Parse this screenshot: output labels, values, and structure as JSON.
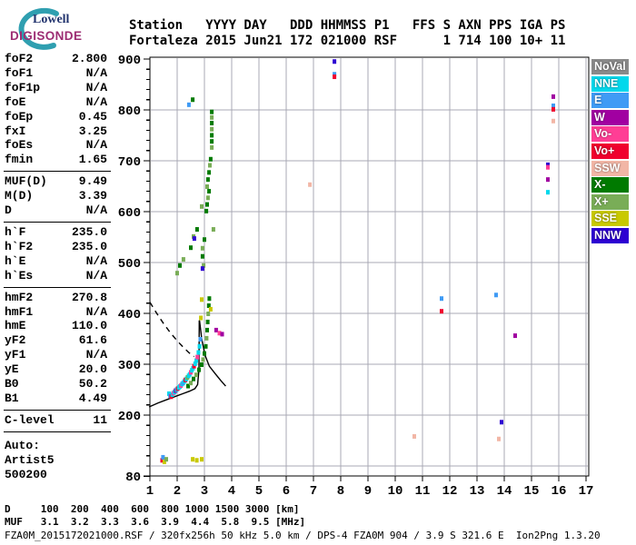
{
  "logo": {
    "line1": "Lowell",
    "line2": "DIGISONDE"
  },
  "header": {
    "line1": "Station   YYYY DAY   DDD HHMMSS P1   FFS S AXN PPS IGA PS",
    "line2": "Fortaleza 2015 Jun21 172 021000 RSF      1 714 100 10+ 11"
  },
  "params": {
    "groups": [
      {
        "rows": [
          [
            "foF2",
            "2.800"
          ],
          [
            "foF1",
            "N/A"
          ],
          [
            "foF1p",
            "N/A"
          ],
          [
            "foE",
            "N/A"
          ],
          [
            "foEp",
            "0.45"
          ],
          [
            "fxI",
            "3.25"
          ],
          [
            "foEs",
            "N/A"
          ],
          [
            "fmin",
            "1.65"
          ]
        ],
        "sep": true
      },
      {
        "rows": [
          [
            "MUF(D)",
            "9.49"
          ],
          [
            "M(D)",
            "3.39"
          ],
          [
            "D",
            "N/A"
          ]
        ],
        "sep": true
      },
      {
        "rows": [
          [
            "h`F",
            "235.0"
          ],
          [
            "h`F2",
            "235.0"
          ],
          [
            "h`E",
            "N/A"
          ],
          [
            "h`Es",
            "N/A"
          ]
        ],
        "sep": true
      },
      {
        "rows": [
          [
            "hmF2",
            "270.8"
          ],
          [
            "hmF1",
            "N/A"
          ],
          [
            "hmE",
            "110.0"
          ],
          [
            "yF2",
            "61.6"
          ],
          [
            "yF1",
            "N/A"
          ],
          [
            "yE",
            "20.0"
          ],
          [
            "B0",
            "50.2"
          ],
          [
            "B1",
            "4.49"
          ]
        ],
        "sep": true
      },
      {
        "rows": [
          [
            "C-level",
            "11"
          ]
        ],
        "sep": true
      }
    ],
    "auto_lines": [
      "Auto:",
      "Artist5",
      "500200"
    ]
  },
  "legend": {
    "items": [
      {
        "label": "NoVal",
        "color": "#8a8a8a"
      },
      {
        "label": "NNE",
        "color": "#00d8ec"
      },
      {
        "label": "E",
        "color": "#3f9bf5"
      },
      {
        "label": "W",
        "color": "#a100a1"
      },
      {
        "label": "Vo-",
        "color": "#ff3e95"
      },
      {
        "label": "Vo+",
        "color": "#f0002e"
      },
      {
        "label": "SSW",
        "color": "#f2b6a6"
      },
      {
        "label": "X-",
        "color": "#007a00"
      },
      {
        "label": "X+",
        "color": "#79ad57"
      },
      {
        "label": "SSE",
        "color": "#c9c900"
      },
      {
        "label": "NNW",
        "color": "#2d00d2"
      }
    ]
  },
  "chart_data": {
    "type": "scatter",
    "title": "",
    "xlabel": "",
    "ylabel": "",
    "x_unit": "MHz",
    "y_unit": "km",
    "xlim": [
      1,
      17
    ],
    "ylim": [
      80,
      900
    ],
    "x_ticks": [
      1,
      2,
      3,
      4,
      5,
      6,
      7,
      8,
      9,
      10,
      11,
      12,
      13,
      14,
      15,
      16,
      17
    ],
    "y_tick_labels": [
      900,
      800,
      700,
      600,
      500,
      400,
      300,
      200,
      80
    ],
    "y_minor_step": 20,
    "grid": true,
    "legend_position": "right",
    "points": [
      [
        1.7,
        243,
        "NNE"
      ],
      [
        1.74,
        239,
        "E"
      ],
      [
        1.78,
        237,
        "Vo+"
      ],
      [
        1.82,
        241,
        "NNE"
      ],
      [
        1.86,
        244,
        "Vo-"
      ],
      [
        1.9,
        246,
        "NNE"
      ],
      [
        1.94,
        249,
        "W"
      ],
      [
        1.98,
        251,
        "NNE"
      ],
      [
        2.02,
        253,
        "Vo+"
      ],
      [
        2.06,
        255,
        "NNE"
      ],
      [
        2.1,
        257,
        "NNE"
      ],
      [
        2.14,
        259,
        "Vo-"
      ],
      [
        2.18,
        262,
        "NNE"
      ],
      [
        2.22,
        264,
        "E"
      ],
      [
        2.26,
        267,
        "NNE"
      ],
      [
        2.3,
        270,
        "Vo+"
      ],
      [
        2.34,
        272,
        "NNE"
      ],
      [
        2.38,
        275,
        "X+"
      ],
      [
        2.42,
        278,
        "NNE"
      ],
      [
        2.46,
        281,
        "NNE"
      ],
      [
        2.5,
        285,
        "Vo-"
      ],
      [
        2.54,
        289,
        "NNE"
      ],
      [
        2.58,
        293,
        "NNE"
      ],
      [
        2.62,
        297,
        "Vo+"
      ],
      [
        2.66,
        302,
        "NNE"
      ],
      [
        2.7,
        308,
        "NNE"
      ],
      [
        2.74,
        315,
        "Vo-"
      ],
      [
        2.78,
        324,
        "NNE"
      ],
      [
        2.82,
        336,
        "NNE"
      ],
      [
        2.85,
        350,
        "E"
      ],
      [
        2.4,
        258,
        "X-"
      ],
      [
        2.5,
        264,
        "X+"
      ],
      [
        2.6,
        272,
        "X-"
      ],
      [
        2.7,
        280,
        "X+"
      ],
      [
        2.8,
        290,
        "X-"
      ],
      [
        2.9,
        300,
        "X-"
      ],
      [
        2.95,
        310,
        "X+"
      ],
      [
        3.0,
        322,
        "X-"
      ],
      [
        3.05,
        336,
        "X-"
      ],
      [
        3.08,
        352,
        "X+"
      ],
      [
        3.1,
        368,
        "X-"
      ],
      [
        3.12,
        384,
        "X-"
      ],
      [
        3.14,
        400,
        "X+"
      ],
      [
        3.16,
        416,
        "X-"
      ],
      [
        3.18,
        430,
        "X-"
      ],
      [
        3.43,
        368,
        "W"
      ],
      [
        3.55,
        362,
        "Vo-"
      ],
      [
        3.65,
        360,
        "W"
      ],
      [
        3.23,
        409,
        "SSE"
      ],
      [
        2.87,
        392,
        "SSE"
      ],
      [
        2.9,
        428,
        "SSE"
      ],
      [
        2.57,
        821,
        "X-"
      ],
      [
        2.43,
        811,
        "E"
      ],
      [
        3.27,
        797,
        "X-"
      ],
      [
        3.27,
        786,
        "X+"
      ],
      [
        3.27,
        775,
        "X-"
      ],
      [
        3.27,
        763,
        "X+"
      ],
      [
        3.27,
        751,
        "X-"
      ],
      [
        3.27,
        739,
        "X-"
      ],
      [
        3.27,
        727,
        "X+"
      ],
      [
        3.23,
        704,
        "X-"
      ],
      [
        3.2,
        692,
        "X+"
      ],
      [
        3.17,
        678,
        "X-"
      ],
      [
        3.13,
        664,
        "X-"
      ],
      [
        3.1,
        650,
        "X+"
      ],
      [
        3.17,
        641,
        "X-"
      ],
      [
        3.13,
        628,
        "X+"
      ],
      [
        3.1,
        615,
        "X-"
      ],
      [
        3.07,
        602,
        "X-"
      ],
      [
        2.9,
        611,
        "X+"
      ],
      [
        2.73,
        566,
        "X-"
      ],
      [
        2.6,
        552,
        "X+"
      ],
      [
        2.5,
        530,
        "X-"
      ],
      [
        2.23,
        507,
        "X+"
      ],
      [
        2.1,
        495,
        "X-"
      ],
      [
        2.0,
        480,
        "X+"
      ],
      [
        2.63,
        548,
        "NNW"
      ],
      [
        3.33,
        566,
        "X+"
      ],
      [
        3.0,
        546,
        "X-"
      ],
      [
        2.93,
        529,
        "X+"
      ],
      [
        2.93,
        513,
        "X-"
      ],
      [
        2.97,
        495,
        "X+"
      ],
      [
        2.93,
        489,
        "NNW"
      ],
      [
        1.45,
        112,
        "Vo+"
      ],
      [
        1.48,
        118,
        "E"
      ],
      [
        1.53,
        109,
        "SSE"
      ],
      [
        1.6,
        114,
        "X+"
      ],
      [
        2.57,
        114,
        "SSE"
      ],
      [
        2.72,
        112,
        "SSE"
      ],
      [
        2.9,
        114,
        "SSE"
      ],
      [
        7.77,
        896,
        "NNW"
      ],
      [
        7.77,
        871,
        "E"
      ],
      [
        7.77,
        866,
        "Vo+"
      ],
      [
        6.87,
        654,
        "SSW"
      ],
      [
        11.7,
        430,
        "E"
      ],
      [
        11.7,
        405,
        "Vo+"
      ],
      [
        13.7,
        437,
        "E"
      ],
      [
        14.4,
        357,
        "W"
      ],
      [
        13.9,
        187,
        "NNW"
      ],
      [
        10.7,
        159,
        "SSW"
      ],
      [
        13.8,
        154,
        "SSW"
      ],
      [
        15.8,
        827,
        "W"
      ],
      [
        15.8,
        809,
        "E"
      ],
      [
        15.8,
        802,
        "Vo+"
      ],
      [
        15.8,
        779,
        "SSW"
      ],
      [
        15.6,
        693,
        "NNW"
      ],
      [
        15.6,
        688,
        "Vo-"
      ],
      [
        15.6,
        664,
        "W"
      ],
      [
        15.6,
        639,
        "NNE"
      ]
    ],
    "curves": [
      {
        "name": "transmission-curve",
        "style": "dashed",
        "points": [
          [
            1.0,
            422
          ],
          [
            1.25,
            400
          ],
          [
            1.5,
            380
          ],
          [
            1.75,
            362
          ],
          [
            2.0,
            346
          ],
          [
            2.25,
            332
          ],
          [
            2.45,
            322
          ],
          [
            2.62,
            315
          ]
        ]
      },
      {
        "name": "true-height-profile",
        "style": "solid",
        "points": [
          [
            0.97,
            216
          ],
          [
            1.3,
            224
          ],
          [
            1.6,
            230
          ],
          [
            1.9,
            236
          ],
          [
            2.2,
            242
          ],
          [
            2.45,
            247
          ],
          [
            2.65,
            252
          ],
          [
            2.75,
            260
          ],
          [
            2.8,
            290
          ],
          [
            2.81,
            386
          ]
        ]
      },
      {
        "name": "profile-hook",
        "style": "solid",
        "points": [
          [
            2.82,
            386
          ],
          [
            2.9,
            350
          ],
          [
            3.02,
            318
          ],
          [
            3.18,
            296
          ],
          [
            3.4,
            281
          ],
          [
            3.6,
            268
          ],
          [
            3.78,
            257
          ]
        ]
      }
    ]
  },
  "footer": {
    "d_line": "D     100  200  400  600  800 1000 1500 3000 [km]",
    "muf_line": "MUF   3.1  3.2  3.3  3.6  3.9  4.4  5.8  9.5 [MHz]",
    "file_line": "FZA0M_2015172021000.RSF / 320fx256h 50 kHz 5.0 km / DPS-4 FZA0M 904 / 3.9 S 321.6 E  Ion2Png 1.3.20"
  }
}
